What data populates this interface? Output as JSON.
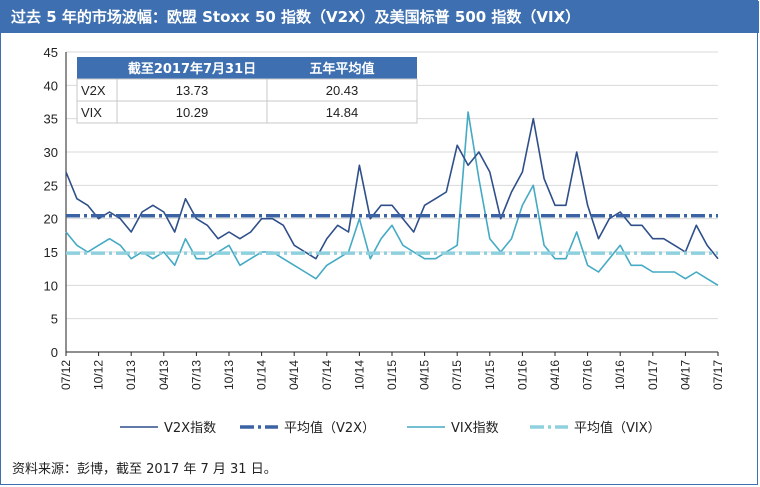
{
  "title": "过去 5 年的市场波幅：欧盟 Stoxx 50 指数（V2X）及美国标普 500 指数（VIX）",
  "source": "资料来源：彭博，截至 2017 年 7 月 31 日。",
  "colors": {
    "v2x": "#2f4f8a",
    "v2x_avg": "#3b63a3",
    "vix": "#45aac4",
    "vix_avg": "#8fd0df",
    "header": "#3e6fb0"
  },
  "summary_table": {
    "headers": [
      "",
      "截至2017年7月31日",
      "五年平均值"
    ],
    "rows": [
      [
        "V2X",
        "13.73",
        "20.43"
      ],
      [
        "VIX",
        "10.29",
        "14.84"
      ]
    ]
  },
  "legend": [
    {
      "label": "V2X指数",
      "key": "v2x"
    },
    {
      "label": "平均值（V2X）",
      "key": "v2x_avg"
    },
    {
      "label": "VIX指数",
      "key": "vix"
    },
    {
      "label": "平均值（VIX）",
      "key": "vix_avg"
    }
  ],
  "chart_data": {
    "type": "line",
    "ylim": [
      0,
      45
    ],
    "yticks": [
      0,
      5,
      10,
      15,
      20,
      25,
      30,
      35,
      40,
      45
    ],
    "x_ticks": [
      "07/12",
      "10/12",
      "01/13",
      "04/13",
      "07/13",
      "10/13",
      "01/14",
      "04/14",
      "07/14",
      "10/14",
      "01/15",
      "04/15",
      "07/15",
      "10/15",
      "01/16",
      "04/16",
      "07/16",
      "10/16",
      "01/17",
      "04/17",
      "07/17"
    ],
    "x": [
      "07/12",
      "08/12",
      "09/12",
      "10/12",
      "11/12",
      "12/12",
      "01/13",
      "02/13",
      "03/13",
      "04/13",
      "05/13",
      "06/13",
      "07/13",
      "08/13",
      "09/13",
      "10/13",
      "11/13",
      "12/13",
      "01/14",
      "02/14",
      "03/14",
      "04/14",
      "05/14",
      "06/14",
      "07/14",
      "08/14",
      "09/14",
      "10/14",
      "11/14",
      "12/14",
      "01/15",
      "02/15",
      "03/15",
      "04/15",
      "05/15",
      "06/15",
      "07/15",
      "08/15",
      "09/15",
      "10/15",
      "11/15",
      "12/15",
      "01/16",
      "02/16",
      "03/16",
      "04/16",
      "05/16",
      "06/16",
      "07/16",
      "08/16",
      "09/16",
      "10/16",
      "11/16",
      "12/16",
      "01/17",
      "02/17",
      "03/17",
      "04/17",
      "05/17",
      "06/17",
      "07/17"
    ],
    "series": [
      {
        "name": "V2X指数",
        "values": [
          27,
          23,
          22,
          20,
          21,
          20,
          18,
          21,
          22,
          21,
          18,
          23,
          20,
          19,
          17,
          18,
          17,
          18,
          20,
          20,
          19,
          16,
          15,
          14,
          17,
          19,
          18,
          28,
          20,
          22,
          22,
          20,
          18,
          22,
          23,
          24,
          31,
          28,
          30,
          27,
          20,
          24,
          27,
          35,
          26,
          22,
          22,
          30,
          22,
          17,
          20,
          21,
          19,
          19,
          17,
          17,
          16,
          15,
          19,
          16,
          14
        ]
      },
      {
        "name": "平均值（V2X）",
        "values": [
          20.43,
          20.43,
          20.43,
          20.43,
          20.43,
          20.43,
          20.43,
          20.43,
          20.43,
          20.43,
          20.43,
          20.43,
          20.43,
          20.43,
          20.43,
          20.43,
          20.43,
          20.43,
          20.43,
          20.43,
          20.43,
          20.43,
          20.43,
          20.43,
          20.43,
          20.43,
          20.43,
          20.43,
          20.43,
          20.43,
          20.43,
          20.43,
          20.43,
          20.43,
          20.43,
          20.43,
          20.43,
          20.43,
          20.43,
          20.43,
          20.43,
          20.43,
          20.43,
          20.43,
          20.43,
          20.43,
          20.43,
          20.43,
          20.43,
          20.43,
          20.43,
          20.43,
          20.43,
          20.43,
          20.43,
          20.43,
          20.43,
          20.43,
          20.43,
          20.43,
          20.43
        ]
      },
      {
        "name": "VIX指数",
        "values": [
          18,
          16,
          15,
          16,
          17,
          16,
          14,
          15,
          14,
          15,
          13,
          17,
          14,
          14,
          15,
          16,
          13,
          14,
          15,
          15,
          14,
          13,
          12,
          11,
          13,
          14,
          15,
          20,
          14,
          17,
          19,
          16,
          15,
          14,
          14,
          15,
          16,
          36,
          26,
          17,
          15,
          17,
          22,
          25,
          16,
          14,
          14,
          18,
          13,
          12,
          14,
          16,
          13,
          13,
          12,
          12,
          12,
          11,
          12,
          11,
          10
        ]
      },
      {
        "name": "平均值（VIX）",
        "values": [
          14.84,
          14.84,
          14.84,
          14.84,
          14.84,
          14.84,
          14.84,
          14.84,
          14.84,
          14.84,
          14.84,
          14.84,
          14.84,
          14.84,
          14.84,
          14.84,
          14.84,
          14.84,
          14.84,
          14.84,
          14.84,
          14.84,
          14.84,
          14.84,
          14.84,
          14.84,
          14.84,
          14.84,
          14.84,
          14.84,
          14.84,
          14.84,
          14.84,
          14.84,
          14.84,
          14.84,
          14.84,
          14.84,
          14.84,
          14.84,
          14.84,
          14.84,
          14.84,
          14.84,
          14.84,
          14.84,
          14.84,
          14.84,
          14.84,
          14.84,
          14.84,
          14.84,
          14.84,
          14.84,
          14.84,
          14.84,
          14.84,
          14.84,
          14.84,
          14.84,
          14.84
        ]
      }
    ]
  }
}
